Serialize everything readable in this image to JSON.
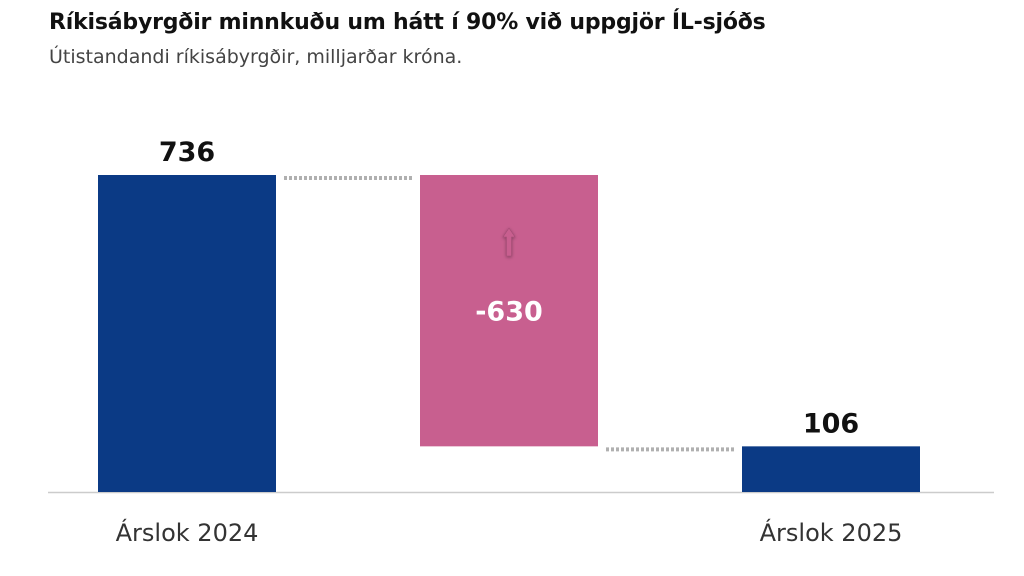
{
  "title": "Ríkisábyrgðir minnkuðu um hátt í 90% við uppgjör ÍL-sjóðs",
  "subtitle": "Útistandandi ríkisábyrgðir, milljarðar króna.",
  "colors": {
    "total": "#0b3a85",
    "decrease": "#c85f8f",
    "connector": "#b0b0b0",
    "axis": "#cccccc"
  },
  "chart_data": {
    "type": "bar",
    "subtype": "waterfall",
    "categories": [
      "Árslok 2024",
      "",
      "Árslok 2025"
    ],
    "values": [
      736,
      -630,
      106
    ],
    "data_labels": [
      "736",
      "-630",
      "106"
    ],
    "ylim": [
      0,
      736
    ],
    "grid": false,
    "legend": "none"
  }
}
